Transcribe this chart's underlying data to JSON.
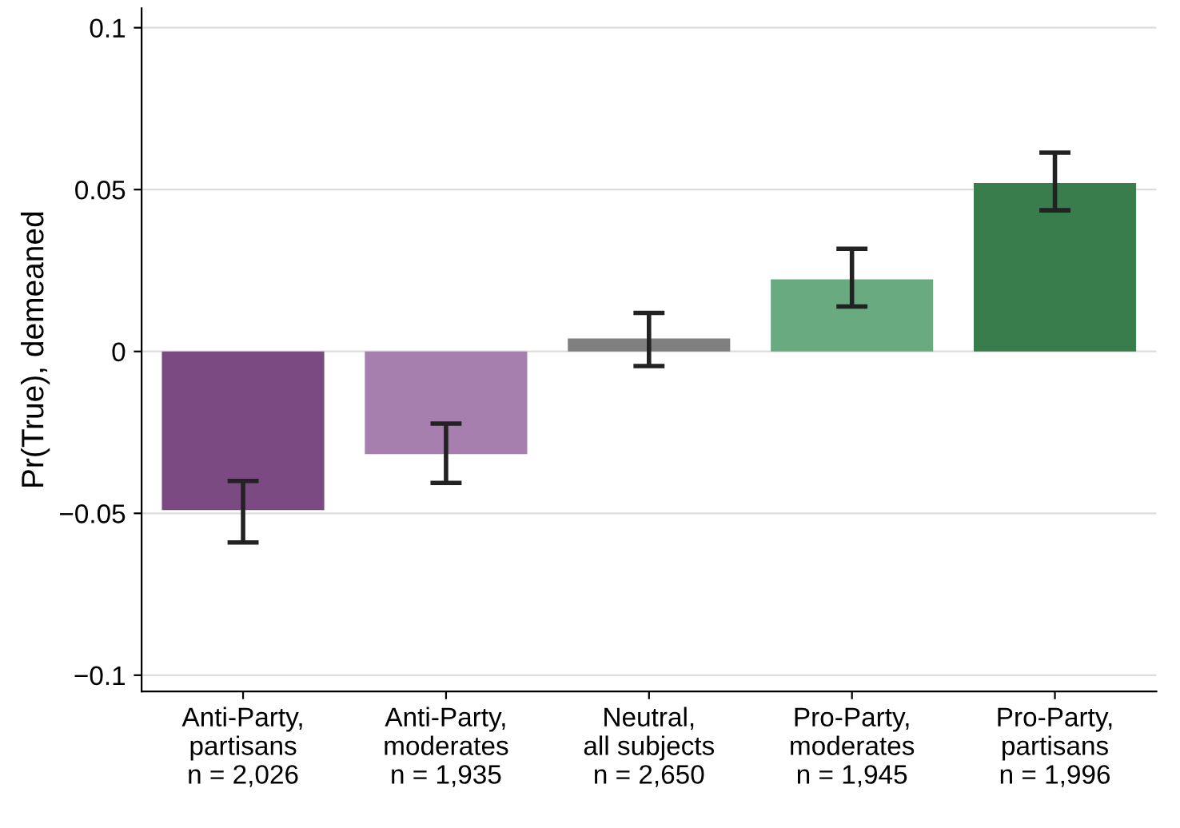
{
  "chart_data": {
    "type": "bar",
    "ylabel": "Pr(True), demeaned",
    "categories": [
      "Anti-Party,\npartisans\nn = 2,026",
      "Anti-Party,\nmoderates\nn = 1,935",
      "Neutral,\nall subjects\nn = 2,650",
      "Pro-Party,\nmoderates\nn = 1,945",
      "Pro-Party,\npartisans\nn = 1,996"
    ],
    "values": [
      -0.049,
      -0.0317,
      0.004,
      0.0223,
      0.052
    ],
    "colors": [
      "#7b4a82",
      "#a77fae",
      "#808080",
      "#6aaa80",
      "#3a7d4c"
    ],
    "errors": [
      [
        -0.059,
        -0.04
      ],
      [
        -0.0406,
        -0.0223
      ],
      [
        -0.0045,
        0.0119
      ],
      [
        0.0139,
        0.0317
      ],
      [
        0.0436,
        0.0614
      ]
    ],
    "ylim": [
      -0.105,
      0.106
    ],
    "yticks": [
      {
        "value": -0.1,
        "label": "−0.1"
      },
      {
        "value": -0.05,
        "label": "−0.05"
      },
      0,
      0.05,
      0.1
    ],
    "grid": "y",
    "legend": false
  }
}
